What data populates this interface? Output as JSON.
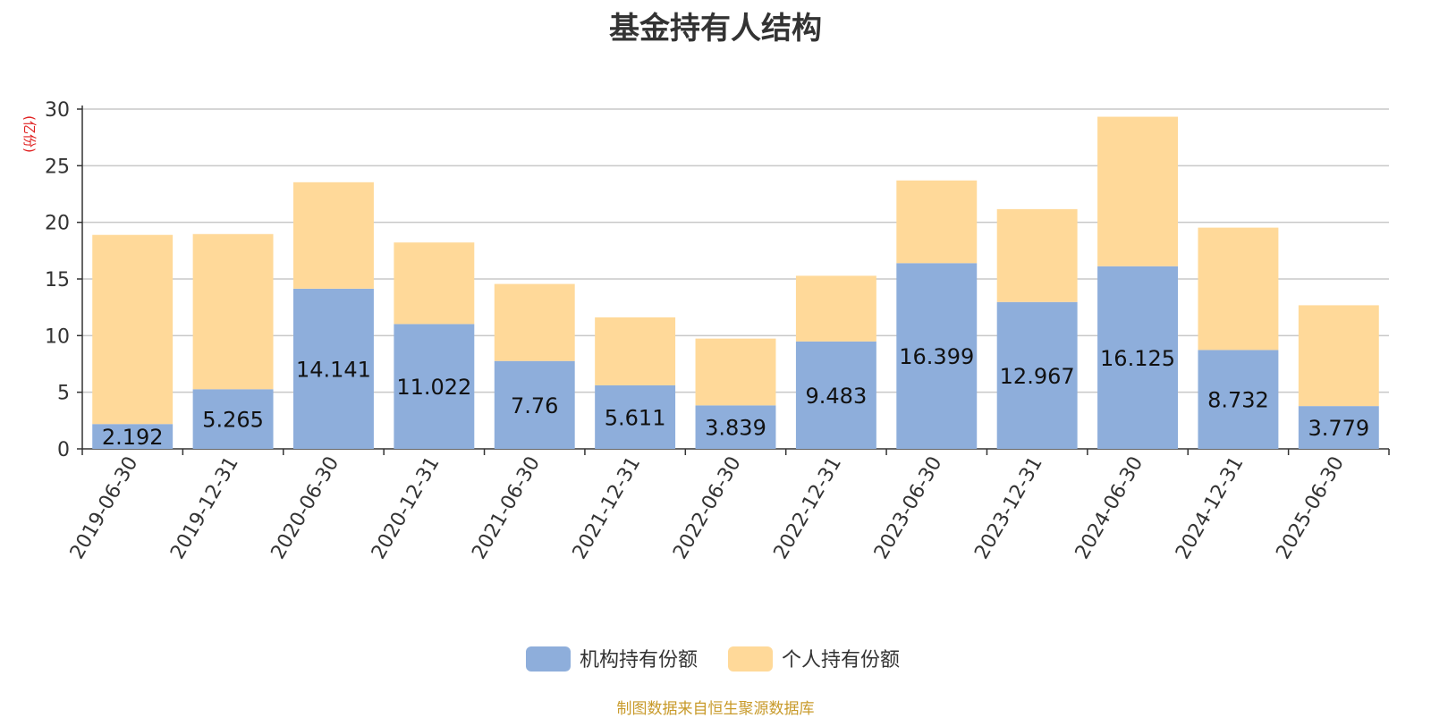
{
  "chart_data": {
    "type": "bar",
    "stacked": true,
    "title": "基金持有人结构",
    "ylabel": "(亿份)",
    "xlabel": "",
    "ylim": [
      0,
      30
    ],
    "yticks": [
      0,
      5,
      10,
      15,
      20,
      25,
      30
    ],
    "grid": true,
    "legend_position": "bottom",
    "categories": [
      "2019-06-30",
      "2019-12-31",
      "2020-06-30",
      "2020-12-31",
      "2021-06-30",
      "2021-12-31",
      "2022-06-30",
      "2022-12-31",
      "2023-06-30",
      "2023-12-31",
      "2024-06-30",
      "2024-12-31",
      "2025-06-30"
    ],
    "series": [
      {
        "name": "机构持有份额",
        "color": "#8eaedb",
        "values": [
          2.192,
          5.265,
          14.141,
          11.022,
          7.76,
          5.611,
          3.839,
          9.483,
          16.399,
          12.967,
          16.125,
          8.732,
          3.779
        ],
        "value_labels": [
          "2.192",
          "5.265",
          "14.141",
          "11.022",
          "7.76",
          "5.611",
          "3.839",
          "9.483",
          "16.399",
          "12.967",
          "16.125",
          "8.732",
          "3.779"
        ]
      },
      {
        "name": "个人持有份额",
        "color": "#ffd999",
        "values": [
          16.7,
          13.7,
          9.4,
          7.2,
          6.8,
          6.0,
          5.9,
          5.8,
          7.3,
          8.2,
          13.2,
          10.8,
          8.9
        ]
      }
    ]
  },
  "footer": {
    "source": "制图数据来自恒生聚源数据库"
  }
}
